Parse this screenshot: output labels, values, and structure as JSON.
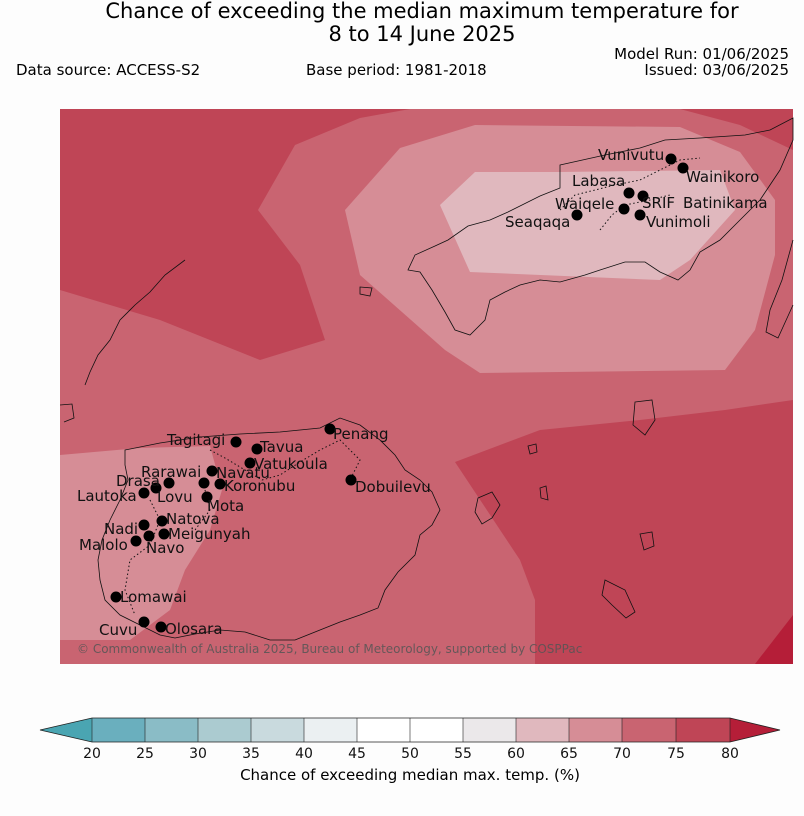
{
  "header": {
    "title_line1": "Chance of exceeding the median maximum temperature for",
    "title_line2": "8 to 14 June 2025",
    "data_source": "Data source: ACCESS-S2",
    "base_period": "Base period: 1981-2018",
    "model_run": "Model Run: 01/06/2025",
    "issued": "Issued: 03/06/2025"
  },
  "map": {
    "copyright": "© Commonwealth of Australia 2025, Bureau of Meteorology, supported by COSPPac",
    "locations": [
      {
        "name": "Vunivutu"
      },
      {
        "name": "Wainikoro"
      },
      {
        "name": "Labasa"
      },
      {
        "name": "Waiqele"
      },
      {
        "name": "SRIF"
      },
      {
        "name": "Batinikama"
      },
      {
        "name": "Seaqaqa"
      },
      {
        "name": "Vunimoli"
      },
      {
        "name": "Penang"
      },
      {
        "name": "Tagitagi"
      },
      {
        "name": "Tavua"
      },
      {
        "name": "Vatukoula"
      },
      {
        "name": "Rarawai"
      },
      {
        "name": "Navatu"
      },
      {
        "name": "Koronubu"
      },
      {
        "name": "Drasa"
      },
      {
        "name": "Lovu"
      },
      {
        "name": "Lautoka"
      },
      {
        "name": "Mota"
      },
      {
        "name": "Dobuilevu"
      },
      {
        "name": "Natova"
      },
      {
        "name": "Nadi"
      },
      {
        "name": "Meigunyah"
      },
      {
        "name": "Malolo"
      },
      {
        "name": "Navo"
      },
      {
        "name": "Lomawai"
      },
      {
        "name": "Cuvu"
      },
      {
        "name": "Olosara"
      }
    ],
    "colors": {
      "lt20": "#4aa5b2",
      "b20_25": "#6aafbe",
      "b25_30": "#8abcc6",
      "b30_35": "#abcbd0",
      "b35_40": "#c9dade",
      "b40_45": "#ebf0f2",
      "b45_50": "#ffffff",
      "b50_55": "#ffffff",
      "b55_60": "#ebe8ea",
      "b60_65": "#e0b8be",
      "b65_70": "#d68d96",
      "b70_75": "#c96471",
      "b75_80": "#bf4556",
      "gt80": "#b51e38"
    }
  },
  "colorbar": {
    "ticks": [
      "20",
      "25",
      "30",
      "35",
      "40",
      "45",
      "50",
      "55",
      "60",
      "65",
      "70",
      "75",
      "80"
    ],
    "label": "Chance of exceeding median max. temp. (%)"
  }
}
